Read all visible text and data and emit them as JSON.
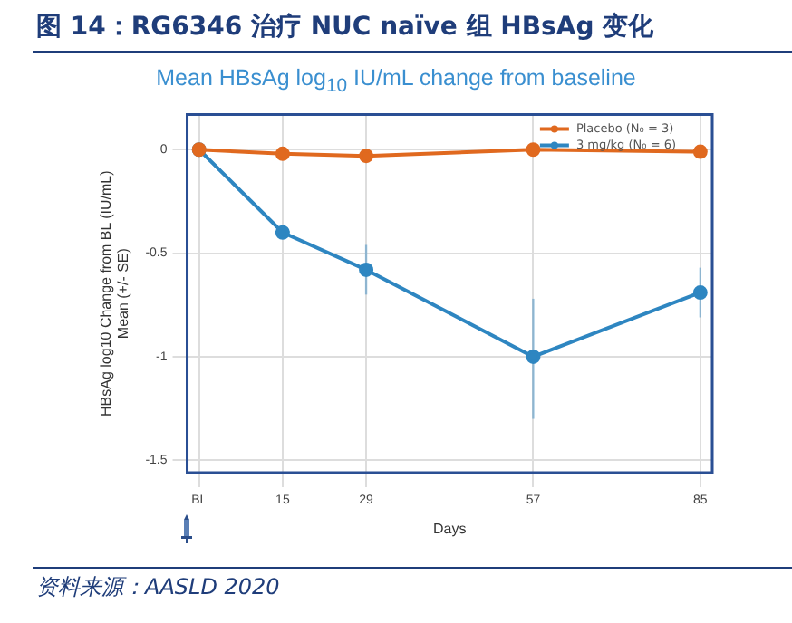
{
  "chart_data": {
    "type": "line",
    "title": "图 14：RG6346 治疗  NUC naïve 组 HBsAg 变化",
    "subtitle": "Mean HBsAg log$_{10}$ IU/mL change from baseline",
    "xlabel": "Days",
    "ylabel": "HBsAg log10 Change from BL (IU/mL)\nMean (+/- SE)",
    "x": [
      1,
      15,
      29,
      57,
      85
    ],
    "xlim": [
      -1,
      87
    ],
    "xticks": [
      {
        "value": 1,
        "label": "BL"
      },
      15,
      29,
      57,
      85
    ],
    "ylim": [
      -1.56,
      0.17
    ],
    "yticks": [
      {
        "value": -1.5,
        "label": "-1.5"
      },
      {
        "value": -1,
        "label": "-1"
      },
      {
        "value": -0.5,
        "label": "-0.5"
      },
      0
    ],
    "series": [
      {
        "name": "Placebo (N₀ = 3)",
        "color": "#e0691f",
        "values": [
          0,
          -0.02,
          -0.03,
          0,
          -0.01
        ]
      },
      {
        "name": "3 mg/kg (N₀ = 6)",
        "color": "#2e86c1",
        "values": [
          0,
          -0.4,
          -0.58,
          -1.0,
          -0.69
        ],
        "errors": [
          null,
          null,
          [
            -0.7,
            -0.46
          ],
          [
            -1.3,
            -0.72
          ],
          [
            -0.81,
            -0.57
          ]
        ]
      }
    ],
    "grid": true,
    "legend": "top right",
    "marker": "circle",
    "line_style": "solid",
    "annotations": [
      "资料来源：AASLD 2020"
    ]
  }
}
